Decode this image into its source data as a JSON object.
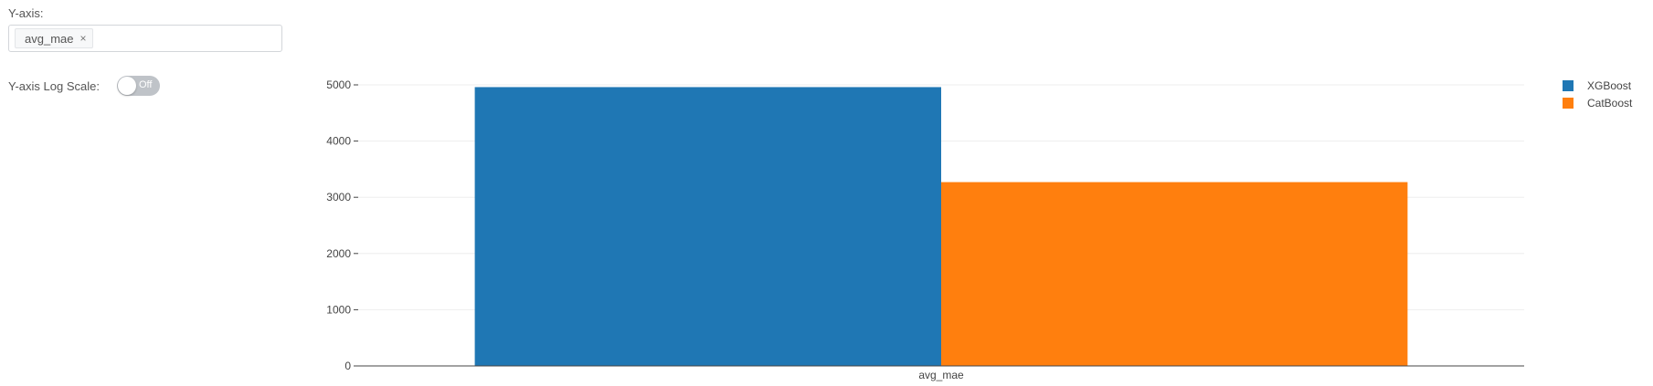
{
  "controls": {
    "y_axis_label": "Y-axis:",
    "selected_metric": "avg_mae",
    "remove_glyph": "×",
    "log_scale_label": "Y-axis Log Scale:",
    "log_scale_state": "Off"
  },
  "colors": {
    "XGBoost": "#1f77b4",
    "CatBoost": "#ff7f0e",
    "grid": "#eeeeee",
    "axis": "#444444"
  },
  "chart_data": {
    "type": "bar",
    "categories": [
      "avg_mae"
    ],
    "series": [
      {
        "name": "XGBoost",
        "values": [
          4960
        ]
      },
      {
        "name": "CatBoost",
        "values": [
          3270
        ]
      }
    ],
    "ylim": [
      0,
      5000
    ],
    "yticks": [
      0,
      1000,
      2000,
      3000,
      4000,
      5000
    ],
    "grid": true,
    "legend": "top-right",
    "log_scale": false
  }
}
